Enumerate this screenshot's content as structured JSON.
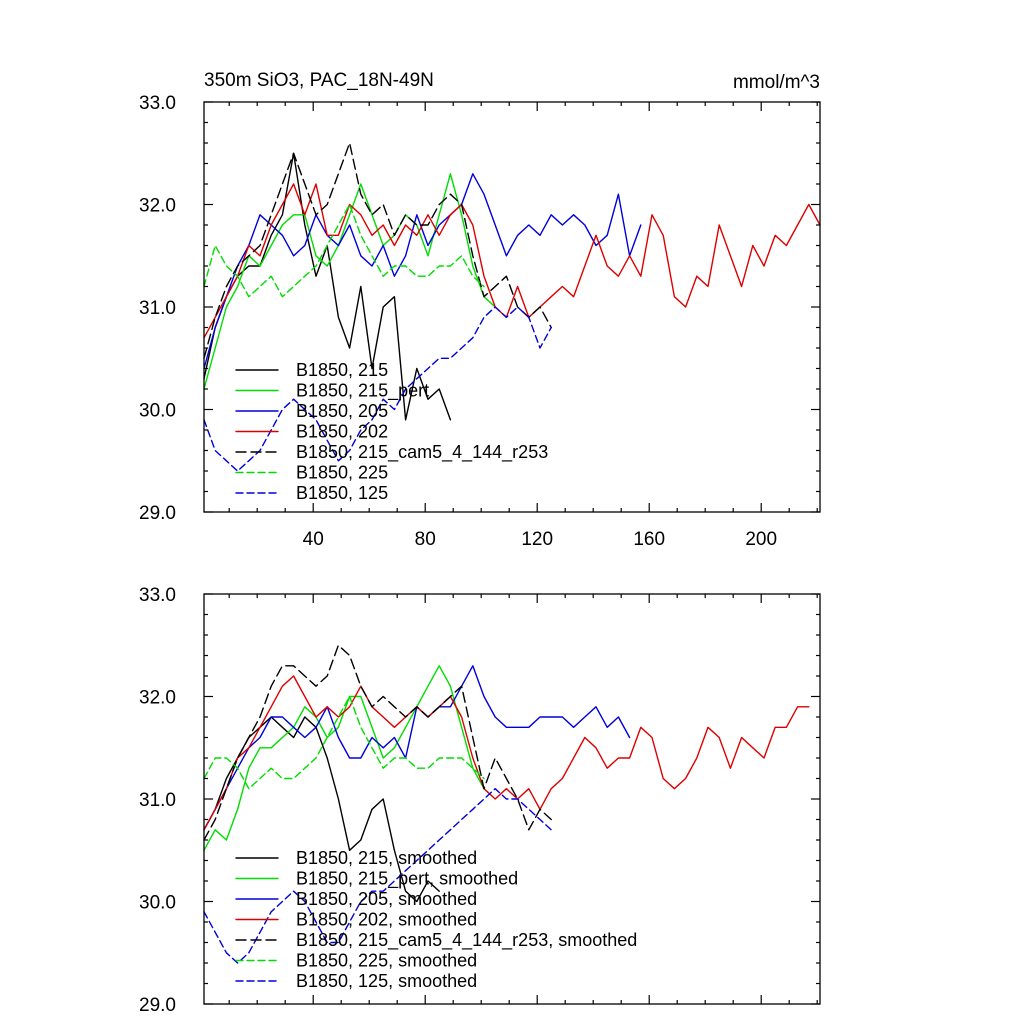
{
  "chart_data": [
    {
      "type": "line",
      "title": "350m SiO3, PAC_18N-49N",
      "units": "mmol/m^3",
      "xlim": [
        1,
        221
      ],
      "ylim": [
        29.0,
        33.0
      ],
      "xticks": [
        40,
        80,
        120,
        160,
        200
      ],
      "yticks": [
        29.0,
        30.0,
        31.0,
        32.0,
        33.0
      ],
      "ytick_labels": [
        "29.0",
        "30.0",
        "31.0",
        "32.0",
        "33.0"
      ],
      "legend_position": "bottom-left",
      "series": [
        {
          "name": "B1850, 215",
          "color": "#000000",
          "dash": "solid",
          "x": [
            1,
            5,
            9,
            13,
            17,
            21,
            25,
            29,
            33,
            37,
            41,
            45,
            49,
            53,
            57,
            61,
            65,
            69,
            73,
            77,
            81,
            85,
            89
          ],
          "y": [
            30.3,
            30.8,
            31.1,
            31.3,
            31.4,
            31.4,
            31.7,
            31.9,
            32.5,
            31.8,
            31.3,
            31.6,
            30.9,
            30.6,
            31.2,
            30.4,
            31.0,
            31.1,
            29.9,
            30.4,
            30.1,
            30.2,
            29.9
          ]
        },
        {
          "name": "B1850, 215_pert",
          "color": "#00dd00",
          "dash": "solid",
          "x": [
            1,
            5,
            9,
            13,
            17,
            21,
            25,
            29,
            33,
            37,
            41,
            45,
            49,
            53,
            57,
            61,
            65,
            69,
            73,
            77,
            81,
            85,
            89,
            93,
            97,
            101,
            105
          ],
          "y": [
            30.2,
            30.6,
            31.0,
            31.2,
            31.5,
            31.4,
            31.6,
            31.8,
            31.9,
            31.9,
            31.5,
            31.4,
            31.6,
            31.9,
            32.2,
            31.9,
            31.6,
            31.7,
            31.9,
            31.8,
            31.5,
            31.9,
            32.3,
            31.9,
            31.4,
            31.1,
            31.0
          ]
        },
        {
          "name": "B1850, 205",
          "color": "#0000dd",
          "dash": "solid",
          "x": [
            1,
            5,
            9,
            13,
            17,
            21,
            25,
            29,
            33,
            37,
            41,
            45,
            49,
            53,
            57,
            61,
            65,
            69,
            73,
            77,
            81,
            85,
            89,
            93,
            97,
            101,
            105,
            109,
            113,
            117,
            121,
            125,
            129,
            133,
            137,
            141,
            145,
            149,
            153,
            157
          ],
          "y": [
            30.4,
            30.8,
            31.1,
            31.4,
            31.6,
            31.9,
            31.8,
            31.7,
            31.5,
            31.6,
            31.9,
            31.7,
            31.6,
            31.8,
            31.5,
            31.4,
            31.6,
            31.3,
            31.5,
            31.9,
            31.6,
            31.8,
            31.9,
            32.0,
            32.3,
            32.1,
            31.8,
            31.5,
            31.7,
            31.8,
            31.7,
            31.9,
            31.8,
            31.9,
            31.8,
            31.6,
            31.7,
            32.1,
            31.5,
            31.8
          ]
        },
        {
          "name": "B1850, 202",
          "color": "#dd0000",
          "dash": "solid",
          "x": [
            1,
            5,
            9,
            13,
            17,
            21,
            25,
            29,
            33,
            37,
            41,
            45,
            49,
            53,
            57,
            61,
            65,
            69,
            73,
            77,
            81,
            85,
            89,
            93,
            97,
            101,
            105,
            109,
            113,
            117,
            121,
            125,
            129,
            133,
            137,
            141,
            145,
            149,
            153,
            157,
            161,
            165,
            169,
            173,
            177,
            181,
            185,
            189,
            193,
            197,
            201,
            205,
            209,
            213,
            217,
            221
          ],
          "y": [
            30.7,
            30.9,
            31.1,
            31.3,
            31.6,
            31.5,
            31.8,
            32.0,
            32.2,
            31.9,
            32.2,
            31.7,
            31.7,
            32.0,
            31.9,
            31.7,
            31.8,
            31.6,
            31.8,
            31.7,
            31.9,
            31.7,
            31.9,
            32.0,
            31.8,
            31.3,
            31.0,
            30.9,
            31.2,
            30.9,
            31.0,
            31.1,
            31.2,
            31.1,
            31.4,
            31.7,
            31.4,
            31.3,
            31.5,
            31.3,
            31.9,
            31.7,
            31.1,
            31.0,
            31.3,
            31.2,
            31.8,
            31.5,
            31.2,
            31.6,
            31.4,
            31.7,
            31.6,
            31.8,
            32.0,
            31.8
          ]
        },
        {
          "name": "B1850, 215_cam5_4_144_r253",
          "color": "#000000",
          "dash": "long",
          "x": [
            1,
            5,
            9,
            13,
            17,
            21,
            25,
            29,
            33,
            37,
            41,
            45,
            49,
            53,
            57,
            61,
            65,
            69,
            73,
            77,
            81,
            85,
            89,
            93,
            97,
            101,
            105,
            109,
            113,
            117,
            121,
            125
          ],
          "y": [
            30.5,
            30.9,
            31.2,
            31.4,
            31.5,
            31.6,
            31.9,
            32.2,
            32.5,
            32.2,
            31.9,
            32.0,
            32.3,
            32.6,
            32.1,
            31.9,
            32.0,
            31.7,
            31.9,
            31.8,
            31.8,
            32.0,
            32.1,
            32.0,
            31.5,
            31.1,
            31.2,
            31.3,
            31.0,
            30.9,
            31.0,
            30.8
          ]
        },
        {
          "name": "B1850, 225",
          "color": "#00dd00",
          "dash": "medium",
          "x": [
            1,
            5,
            9,
            13,
            17,
            21,
            25,
            29,
            33,
            37,
            41,
            45,
            49,
            53,
            57,
            61,
            65,
            69,
            73,
            77,
            81,
            85,
            89,
            93,
            97,
            101
          ],
          "y": [
            31.2,
            31.6,
            31.4,
            31.3,
            31.1,
            31.2,
            31.3,
            31.1,
            31.2,
            31.3,
            31.4,
            31.6,
            31.8,
            32.0,
            31.7,
            31.5,
            31.3,
            31.4,
            31.4,
            31.3,
            31.3,
            31.4,
            31.4,
            31.5,
            31.3,
            31.2
          ]
        },
        {
          "name": "B1850, 125",
          "color": "#0000dd",
          "dash": "medium",
          "x": [
            1,
            5,
            9,
            13,
            17,
            21,
            25,
            29,
            33,
            37,
            41,
            45,
            49,
            53,
            57,
            61,
            65,
            69,
            73,
            77,
            81,
            85,
            89,
            93,
            97,
            101,
            105,
            109,
            113,
            117,
            121,
            125
          ],
          "y": [
            29.9,
            29.6,
            29.5,
            29.4,
            29.5,
            29.6,
            29.8,
            30.0,
            30.1,
            30.0,
            29.9,
            29.7,
            29.5,
            29.6,
            29.8,
            29.9,
            30.1,
            30.0,
            30.2,
            30.3,
            30.4,
            30.5,
            30.5,
            30.6,
            30.7,
            30.9,
            31.0,
            30.9,
            31.0,
            30.9,
            30.6,
            30.8
          ]
        }
      ]
    },
    {
      "type": "line",
      "title": "",
      "units": "",
      "xlim": [
        1,
        221
      ],
      "ylim": [
        29.0,
        33.0
      ],
      "xticks": [
        40,
        80,
        120,
        160,
        200
      ],
      "yticks": [
        29.0,
        30.0,
        31.0,
        32.0,
        33.0
      ],
      "ytick_labels": [
        "29.0",
        "30.0",
        "31.0",
        "32.0",
        "33.0"
      ],
      "legend_position": "bottom-left",
      "series": [
        {
          "name": "B1850, 215, smoothed",
          "color": "#000000",
          "dash": "solid",
          "x": [
            1,
            5,
            9,
            13,
            17,
            21,
            25,
            29,
            33,
            37,
            41,
            45,
            49,
            53,
            57,
            61,
            65,
            69,
            73,
            77,
            81,
            85
          ],
          "y": [
            30.7,
            30.9,
            31.2,
            31.4,
            31.6,
            31.7,
            31.8,
            31.7,
            31.6,
            31.8,
            31.7,
            31.4,
            31.0,
            30.5,
            30.6,
            30.9,
            31.0,
            30.5,
            30.1,
            30.0,
            30.2,
            30.1
          ]
        },
        {
          "name": "B1850, 215_pert, smoothed",
          "color": "#00dd00",
          "dash": "solid",
          "x": [
            1,
            5,
            9,
            13,
            17,
            21,
            25,
            29,
            33,
            37,
            41,
            45,
            49,
            53,
            57,
            61,
            65,
            69,
            73,
            77,
            81,
            85,
            89,
            93,
            97,
            101
          ],
          "y": [
            30.5,
            30.7,
            30.6,
            30.9,
            31.3,
            31.5,
            31.5,
            31.6,
            31.7,
            31.9,
            31.8,
            31.6,
            31.7,
            32.0,
            32.0,
            31.7,
            31.4,
            31.5,
            31.7,
            31.9,
            32.1,
            32.3,
            32.1,
            31.7,
            31.3,
            31.1
          ]
        },
        {
          "name": "B1850, 205, smoothed",
          "color": "#0000dd",
          "dash": "solid",
          "x": [
            1,
            5,
            9,
            13,
            17,
            21,
            25,
            29,
            33,
            37,
            41,
            45,
            49,
            53,
            57,
            61,
            65,
            69,
            73,
            77,
            81,
            85,
            89,
            93,
            97,
            101,
            105,
            109,
            113,
            117,
            121,
            125,
            129,
            133,
            137,
            141,
            145,
            149,
            153
          ],
          "y": [
            30.7,
            30.9,
            31.1,
            31.3,
            31.5,
            31.6,
            31.8,
            31.8,
            31.7,
            31.6,
            31.7,
            31.9,
            31.6,
            31.4,
            31.4,
            31.6,
            31.5,
            31.6,
            31.4,
            31.9,
            31.8,
            31.9,
            31.9,
            32.1,
            32.3,
            32.0,
            31.8,
            31.7,
            31.7,
            31.7,
            31.8,
            31.8,
            31.8,
            31.7,
            31.8,
            31.9,
            31.7,
            31.8,
            31.6
          ]
        },
        {
          "name": "B1850, 202, smoothed",
          "color": "#dd0000",
          "dash": "solid",
          "x": [
            1,
            5,
            9,
            13,
            17,
            21,
            25,
            29,
            33,
            37,
            41,
            45,
            49,
            53,
            57,
            61,
            65,
            69,
            73,
            77,
            81,
            85,
            89,
            93,
            97,
            101,
            105,
            109,
            113,
            117,
            121,
            125,
            129,
            133,
            137,
            141,
            145,
            149,
            153,
            157,
            161,
            165,
            169,
            173,
            177,
            181,
            185,
            189,
            193,
            197,
            201,
            205,
            209,
            213,
            217
          ],
          "y": [
            30.7,
            30.9,
            31.1,
            31.4,
            31.5,
            31.7,
            31.9,
            32.1,
            32.2,
            32.0,
            31.8,
            31.9,
            31.8,
            31.9,
            32.1,
            31.9,
            31.8,
            31.7,
            31.8,
            31.9,
            31.8,
            31.9,
            32.0,
            31.8,
            31.4,
            31.1,
            31.0,
            31.1,
            31.0,
            31.1,
            30.9,
            31.1,
            31.2,
            31.4,
            31.6,
            31.5,
            31.3,
            31.4,
            31.4,
            31.7,
            31.6,
            31.2,
            31.1,
            31.2,
            31.4,
            31.7,
            31.6,
            31.3,
            31.6,
            31.5,
            31.4,
            31.7,
            31.7,
            31.9,
            31.9
          ]
        },
        {
          "name": "B1850, 215_cam5_4_144_r253, smoothed",
          "color": "#000000",
          "dash": "long",
          "x": [
            1,
            5,
            9,
            13,
            17,
            21,
            25,
            29,
            33,
            37,
            41,
            45,
            49,
            53,
            57,
            61,
            65,
            69,
            73,
            77,
            81,
            85,
            89,
            93,
            97,
            101,
            105,
            109,
            113,
            117,
            121,
            125
          ],
          "y": [
            30.6,
            30.8,
            31.1,
            31.4,
            31.6,
            31.8,
            32.1,
            32.3,
            32.3,
            32.2,
            32.1,
            32.2,
            32.5,
            32.4,
            32.1,
            31.9,
            32.0,
            31.9,
            31.8,
            31.9,
            31.8,
            31.9,
            32.0,
            32.1,
            31.6,
            31.1,
            31.4,
            31.2,
            31.0,
            30.7,
            30.9,
            30.8
          ]
        },
        {
          "name": "B1850, 225, smoothed",
          "color": "#00dd00",
          "dash": "medium",
          "x": [
            1,
            5,
            9,
            13,
            17,
            21,
            25,
            29,
            33,
            37,
            41,
            45,
            49,
            53,
            57,
            61,
            65,
            69,
            73,
            77,
            81,
            85,
            89,
            93,
            97,
            101
          ],
          "y": [
            31.2,
            31.4,
            31.4,
            31.3,
            31.1,
            31.2,
            31.3,
            31.2,
            31.2,
            31.3,
            31.4,
            31.6,
            31.8,
            32.0,
            31.7,
            31.5,
            31.3,
            31.4,
            31.4,
            31.3,
            31.3,
            31.4,
            31.4,
            31.4,
            31.3,
            31.2
          ]
        },
        {
          "name": "B1850, 125, smoothed",
          "color": "#0000dd",
          "dash": "medium",
          "x": [
            1,
            5,
            9,
            13,
            17,
            21,
            25,
            29,
            33,
            37,
            41,
            45,
            49,
            53,
            57,
            61,
            65,
            69,
            73,
            77,
            81,
            85,
            89,
            93,
            97,
            101,
            105,
            109,
            113,
            117,
            121,
            125
          ],
          "y": [
            29.9,
            29.7,
            29.5,
            29.4,
            29.5,
            29.7,
            29.9,
            30.0,
            30.1,
            30.0,
            29.8,
            29.6,
            29.6,
            29.8,
            30.0,
            30.1,
            30.1,
            30.2,
            30.3,
            30.4,
            30.5,
            30.6,
            30.7,
            30.8,
            30.9,
            31.0,
            31.1,
            31.0,
            31.0,
            30.9,
            30.8,
            30.7
          ]
        }
      ]
    }
  ]
}
